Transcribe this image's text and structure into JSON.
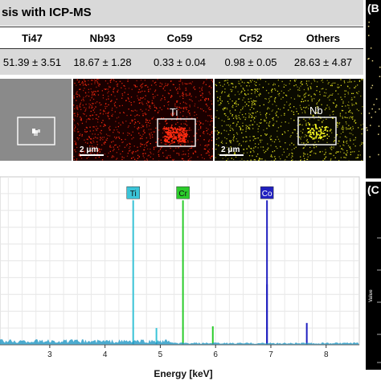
{
  "table": {
    "title": "sis with ICP-MS",
    "headers": [
      "Ti47",
      "Nb93",
      "Co59",
      "Cr52",
      "Others"
    ],
    "values": [
      "51.39 ± 3.51",
      "18.67 ± 1.28",
      "0.33 ± 0.04",
      "0.98 ± 0.05",
      "28.63 ± 4.87"
    ]
  },
  "maps": {
    "ti_label": "Ti",
    "nb_label": "Nb",
    "scale_ti": "2 μm",
    "scale_nb": "2 μm",
    "colors": {
      "se": "#8c8c8c",
      "ti": "#ff2a10",
      "nb": "#f0f020"
    }
  },
  "side_panels": {
    "b_label": "(B",
    "c_label": "(C",
    "c_axis_label": "Value"
  },
  "chart_data": {
    "type": "line",
    "xlabel": "Energy [keV]",
    "ylabel": "",
    "xlim": [
      2.1,
      8.6
    ],
    "x_ticks": [
      3,
      4,
      5,
      6,
      7,
      8
    ],
    "grid": true,
    "peaks": [
      {
        "x": 4.51,
        "height": 0.86,
        "color": "#3bc4d8",
        "label": "Ti"
      },
      {
        "x": 4.93,
        "height": 0.1,
        "color": "#3bc4d8",
        "label": ""
      },
      {
        "x": 5.41,
        "height": 0.86,
        "color": "#2bcc2b",
        "label": "Cr"
      },
      {
        "x": 5.95,
        "height": 0.11,
        "color": "#2bcc2b",
        "label": ""
      },
      {
        "x": 6.93,
        "height": 0.86,
        "color": "#2020c0",
        "label": "Co"
      },
      {
        "x": 6.93,
        "height": 0.36,
        "color": "#2020c0",
        "label": ""
      },
      {
        "x": 7.65,
        "height": 0.13,
        "color": "#2020c0",
        "label": ""
      }
    ],
    "baseline_color": "#1f97c4"
  }
}
